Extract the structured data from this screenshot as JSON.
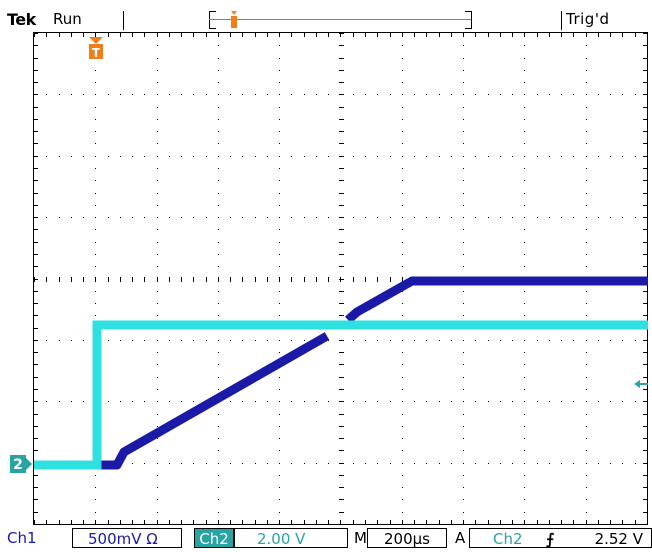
{
  "header": {
    "brand": "Tek",
    "acquisition_state": "Run",
    "trigger_state": "Trig'd"
  },
  "markers": {
    "trigger_position": "T",
    "ch2_ground": "2"
  },
  "footer": {
    "ch1_label": "Ch1",
    "ch1_scale": "500mV Ω",
    "ch2_label": "Ch2",
    "ch2_scale": "2.00 V",
    "timebase_label": "M",
    "timebase_scale": "200µs",
    "trigger_mode_label": "A",
    "trigger_source": "Ch2",
    "trigger_slope": "⨍",
    "trigger_level": "2.52 V"
  },
  "colors": {
    "ch1": "#1a1aa6",
    "ch2": "#2ee0e0",
    "trigger_marker": "#f07f1a",
    "graticule": "#000000"
  }
}
